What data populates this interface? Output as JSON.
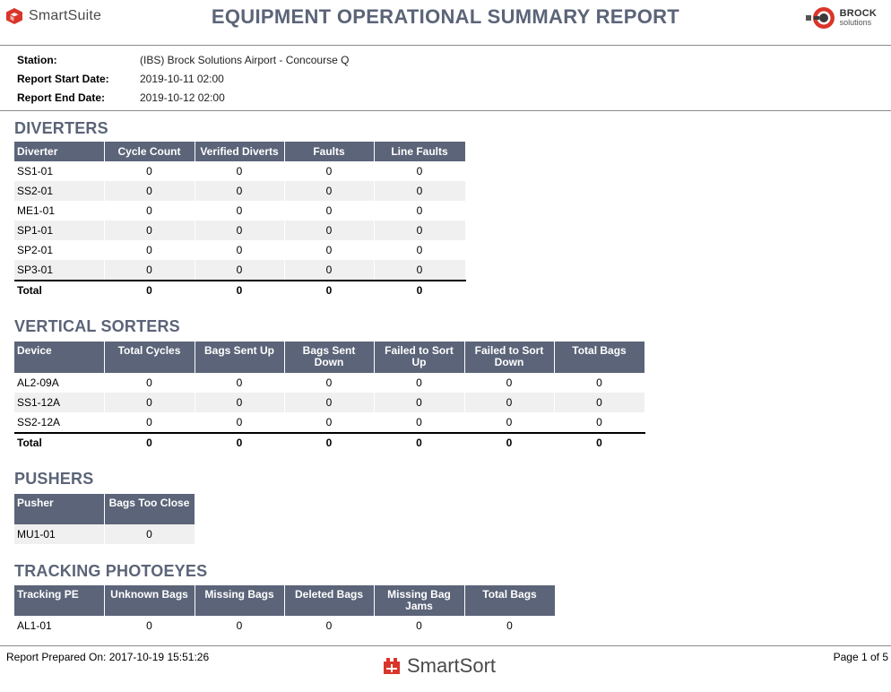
{
  "header": {
    "logo_text": "SmartSuite",
    "title": "EQUIPMENT OPERATIONAL SUMMARY REPORT",
    "brand_name": "BROCK",
    "brand_sub": "solutions"
  },
  "info": {
    "station_label": "Station:",
    "station_value": "(IBS) Brock Solutions Airport - Concourse Q",
    "start_label": "Report Start Date:",
    "start_value": "2019-10-11 02:00",
    "end_label": "Report End Date:",
    "end_value": "2019-10-12 02:00"
  },
  "diverters": {
    "title": "DIVERTERS",
    "headers": [
      "Diverter",
      "Cycle Count",
      "Verified Diverts",
      "Faults",
      "Line Faults"
    ],
    "rows": [
      [
        "SS1-01",
        "0",
        "0",
        "0",
        "0"
      ],
      [
        "SS2-01",
        "0",
        "0",
        "0",
        "0"
      ],
      [
        "ME1-01",
        "0",
        "0",
        "0",
        "0"
      ],
      [
        "SP1-01",
        "0",
        "0",
        "0",
        "0"
      ],
      [
        "SP2-01",
        "0",
        "0",
        "0",
        "0"
      ],
      [
        "SP3-01",
        "0",
        "0",
        "0",
        "0"
      ]
    ],
    "total": [
      "Total",
      "0",
      "0",
      "0",
      "0"
    ]
  },
  "vertical_sorters": {
    "title": "VERTICAL SORTERS",
    "headers": [
      "Device",
      "Total Cycles",
      "Bags Sent Up",
      "Bags Sent Down",
      "Failed to Sort Up",
      "Failed to Sort Down",
      "Total Bags"
    ],
    "rows": [
      [
        "AL2-09A",
        "0",
        "0",
        "0",
        "0",
        "0",
        "0"
      ],
      [
        "SS1-12A",
        "0",
        "0",
        "0",
        "0",
        "0",
        "0"
      ],
      [
        "SS2-12A",
        "0",
        "0",
        "0",
        "0",
        "0",
        "0"
      ]
    ],
    "total": [
      "Total",
      "0",
      "0",
      "0",
      "0",
      "0",
      "0"
    ]
  },
  "pushers": {
    "title": "PUSHERS",
    "headers": [
      "Pusher",
      "Bags Too Close"
    ],
    "rows": [
      [
        "MU1-01",
        "0"
      ]
    ]
  },
  "tracking_photoeyes": {
    "title": "TRACKING PHOTOEYES",
    "headers": [
      "Tracking PE",
      "Unknown Bags",
      "Missing Bags",
      "Deleted Bags",
      "Missing Bag Jams",
      "Total Bags"
    ],
    "rows": [
      [
        "AL1-01",
        "0",
        "0",
        "0",
        "0",
        "0"
      ]
    ]
  },
  "footer": {
    "prepared": "Report Prepared On: 2017-10-19 15:51:26",
    "logo_text": "SmartSort",
    "page": "Page 1 of 5"
  },
  "colors": {
    "header_bg": "#5b6478",
    "row_alt": "#f0f0f0",
    "title_color": "#5b6478",
    "logo_red": "#d9352b"
  }
}
